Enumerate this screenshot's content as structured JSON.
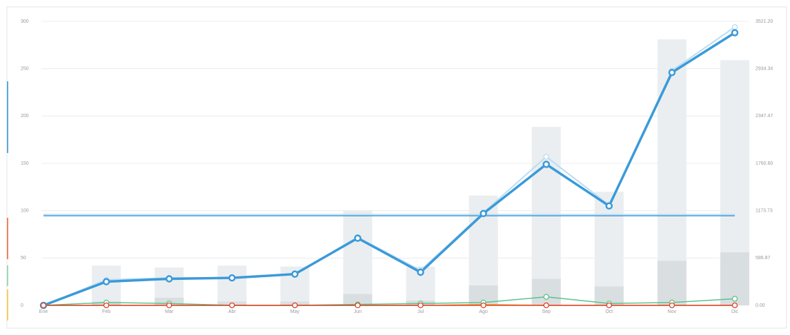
{
  "chart_data": {
    "type": "combo",
    "categories": [
      "Ene",
      "Feb",
      "Mar",
      "Abr",
      "May",
      "Jun",
      "Jul",
      "Ago",
      "Sep",
      "Oct",
      "Nov",
      "Dic"
    ],
    "ylim": [
      0,
      300
    ],
    "yticks": [
      0,
      50,
      100,
      150,
      200,
      250,
      300
    ],
    "y2lim": [
      0,
      3521.2
    ],
    "y2ticks": [
      {
        "value": 0,
        "label": "0.00"
      },
      586.87,
      1173.73,
      {
        "value": 1760.6,
        "label": "1760.60"
      },
      2347.47,
      2934.34,
      {
        "value": 3521.2,
        "label": "3521.20"
      }
    ],
    "grid": true,
    "bars": [
      {
        "color": "#eaeef0",
        "values": [
          0,
          42,
          40,
          42,
          41,
          100,
          41,
          116,
          188.6,
          120,
          281,
          259
        ]
      },
      {
        "color": "#d9dee1",
        "values": [
          0,
          4,
          8,
          4,
          4,
          12,
          5,
          21,
          28,
          20,
          47,
          56
        ]
      }
    ],
    "series": [
      {
        "color": "#b9dcf4",
        "values": [
          0,
          27,
          29,
          29,
          33,
          72,
          37,
          98,
          157,
          106,
          248,
          294
        ],
        "width": 2
      },
      {
        "color": "#3a9ad9",
        "values": [
          0,
          25,
          28,
          29,
          33,
          71,
          35,
          97,
          149,
          105,
          246,
          288
        ],
        "width": 3.5
      },
      {
        "color": "#f0a830",
        "values": [
          0,
          0,
          0,
          0,
          0,
          0,
          0,
          1,
          0,
          0,
          0,
          0
        ],
        "width": 1.5
      },
      {
        "color": "#5cc28a",
        "values": [
          0,
          3,
          2,
          0,
          0,
          1,
          2,
          3,
          9,
          2,
          3,
          7
        ],
        "width": 1.5
      },
      {
        "color": "#e0402a",
        "values": [
          0,
          0,
          0,
          0,
          0,
          0,
          0,
          0,
          0,
          0,
          0,
          0
        ],
        "width": 1.5
      }
    ],
    "reference_lines": [
      {
        "color": "#b9dcf4",
        "value": 96
      },
      {
        "color": "#3a9ad9",
        "value": 94.7
      }
    ]
  }
}
